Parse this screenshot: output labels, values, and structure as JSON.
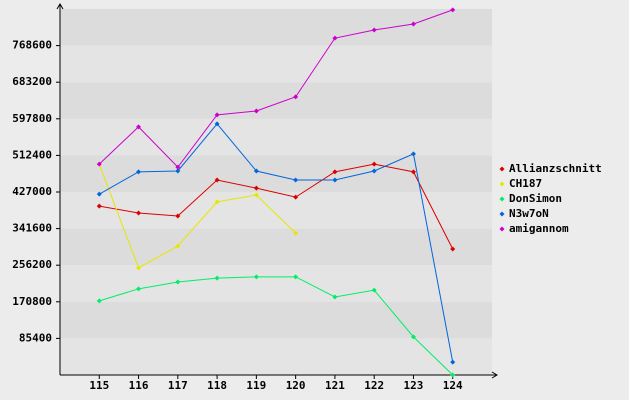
{
  "chart_data": {
    "type": "line",
    "x": [
      115,
      116,
      117,
      118,
      119,
      120,
      121,
      122,
      123,
      124
    ],
    "xlim": [
      114,
      125
    ],
    "xticks": [
      115,
      116,
      117,
      118,
      119,
      120,
      121,
      122,
      123,
      124
    ],
    "ylim": [
      0,
      854000
    ],
    "yticks": [
      85400,
      170800,
      256200,
      341600,
      427000,
      512400,
      597800,
      683200,
      768600
    ],
    "grid": true,
    "legend": "right",
    "series": [
      {
        "name": "Allianzschnitt",
        "color": "#dd0000",
        "values": [
          394000,
          378000,
          371000,
          455000,
          436000,
          415000,
          474000,
          492000,
          474000,
          294000
        ]
      },
      {
        "name": "CH187",
        "color": "#e6e600",
        "values": [
          492000,
          250000,
          301000,
          404000,
          420000,
          331000,
          null,
          null,
          null,
          null
        ]
      },
      {
        "name": "DonSimon",
        "color": "#00ee66",
        "values": [
          173000,
          201000,
          217000,
          226000,
          229000,
          229000,
          182000,
          198000,
          89000,
          0
        ]
      },
      {
        "name": "N3w7oN",
        "color": "#0066dd",
        "values": [
          422000,
          474000,
          476000,
          586000,
          476000,
          455000,
          455000,
          476000,
          516000,
          30000
        ]
      },
      {
        "name": "amigannom",
        "color": "#cc00cc",
        "values": [
          492000,
          579000,
          485000,
          607000,
          616000,
          649000,
          786000,
          805000,
          819000,
          852000
        ]
      }
    ]
  }
}
